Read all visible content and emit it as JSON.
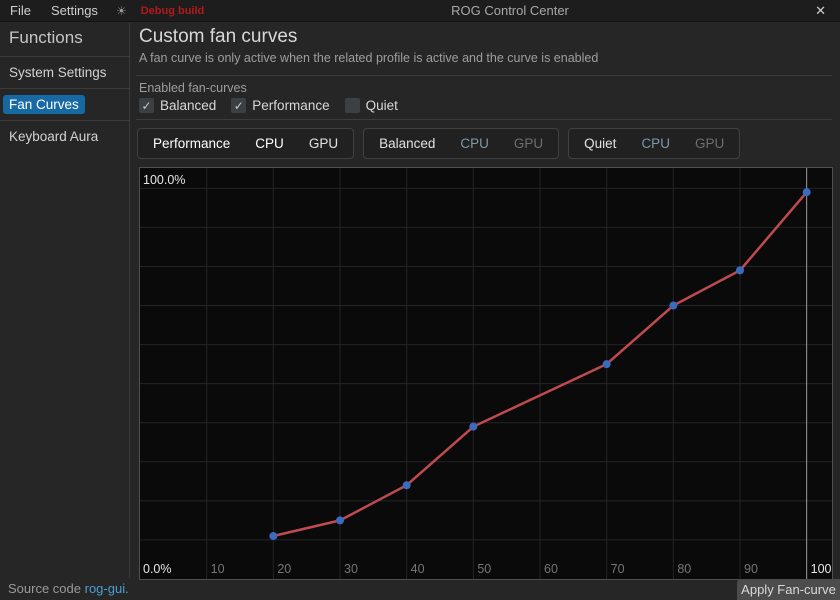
{
  "window": {
    "title": "ROG Control Center",
    "menu": [
      "File",
      "Settings"
    ],
    "theme_icon": "☀",
    "debug_badge": "Debug build",
    "close_icon": "✕"
  },
  "sidebar": {
    "header": "Functions",
    "items": [
      {
        "label": "System Settings",
        "active": false
      },
      {
        "label": "Fan Curves",
        "active": true
      },
      {
        "label": "Keyboard Aura",
        "active": false
      }
    ],
    "footer": {
      "text": "Source code",
      "link": "rog-gui."
    }
  },
  "main": {
    "title": "Custom fan curves",
    "subtitle": "A fan curve is only active when the related profile is active and the curve is enabled",
    "enabled_section": {
      "label": "Enabled fan-curves",
      "checkboxes": [
        {
          "label": "Balanced",
          "checked": true
        },
        {
          "label": "Performance",
          "checked": true
        },
        {
          "label": "Quiet",
          "checked": false
        }
      ]
    },
    "profile_tabs": [
      {
        "profile": "Performance",
        "profile_active": true,
        "fans": [
          {
            "label": "CPU",
            "selected": true
          },
          {
            "label": "GPU",
            "selected": false
          }
        ]
      },
      {
        "profile": "Balanced",
        "profile_active": false,
        "fans": [
          {
            "label": "CPU",
            "selected": true
          },
          {
            "label": "GPU",
            "selected": false
          }
        ]
      },
      {
        "profile": "Quiet",
        "profile_active": false,
        "fans": [
          {
            "label": "CPU",
            "selected": true
          },
          {
            "label": "GPU",
            "selected": false
          }
        ]
      }
    ],
    "apply_button": "Apply Fan-curve"
  },
  "colors": {
    "accent_blue": "#1769a3",
    "accent_blue_dim": "#15465f",
    "link_blue": "#4b9fd4",
    "debug_red": "#b21a1a",
    "window_bg": "#262626",
    "titlebar_bg": "#1d1d1d"
  },
  "chart_data": {
    "type": "line",
    "title": "",
    "xlabel": "",
    "ylabel": "",
    "x": [
      20,
      30,
      40,
      50,
      70,
      80,
      90,
      100
    ],
    "y": [
      11,
      15,
      24,
      39,
      55,
      70,
      79,
      99
    ],
    "x_ticks": [
      10,
      20,
      30,
      40,
      50,
      60,
      70,
      80,
      90,
      100
    ],
    "x_tick_highlight": 100,
    "y_max_label": "100.0%",
    "y_min_label": "0.0%",
    "xlim": [
      0,
      103.8
    ],
    "ylim": [
      0,
      105.2
    ],
    "y_grid_step_percent": 10,
    "grid": true,
    "legend": false,
    "chart_bg": "#0a0a0a",
    "grid_color": "#242424",
    "highlight_line_color": "#9d9d9d",
    "line_color": "#bf4a4f",
    "point_color": "#3b6bbf",
    "tick_label_color": "#757575",
    "bright_label_color": "#e6e6e6"
  }
}
